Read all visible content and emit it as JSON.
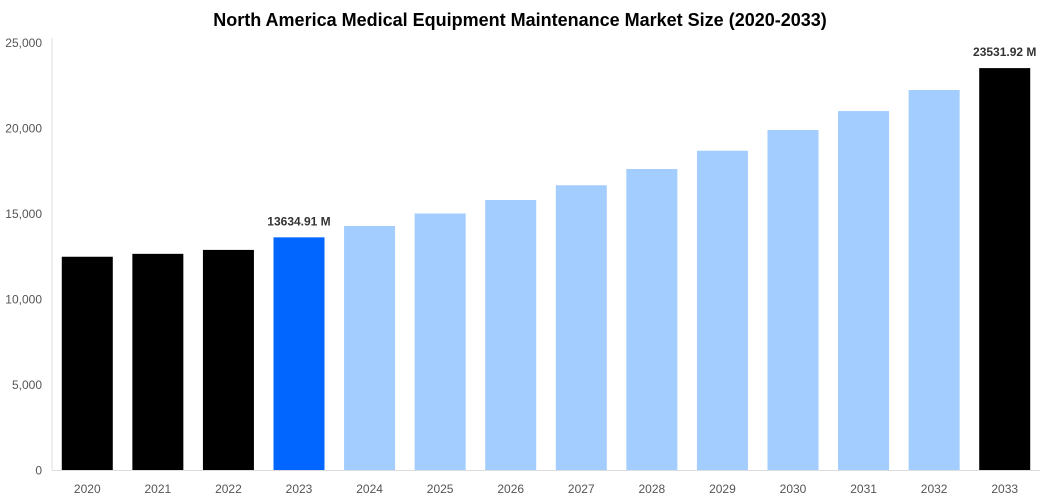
{
  "chart_data": {
    "type": "bar",
    "title": "North America Medical Equipment Maintenance Market Size (2020-2033)",
    "xlabel": "",
    "ylabel": "",
    "categories": [
      "2020",
      "2021",
      "2022",
      "2023",
      "2024",
      "2025",
      "2026",
      "2027",
      "2028",
      "2029",
      "2030",
      "2031",
      "2032",
      "2033"
    ],
    "values": [
      12500,
      12670,
      12900,
      13634.91,
      14300,
      15030,
      15820,
      16680,
      17630,
      18700,
      19910,
      21020,
      22250,
      23531.92
    ],
    "bar_colors": [
      "#000000",
      "#000000",
      "#000000",
      "#0066ff",
      "#a2cdfe",
      "#a2cdfe",
      "#a2cdfe",
      "#a2cdfe",
      "#a2cdfe",
      "#a2cdfe",
      "#a2cdfe",
      "#a2cdfe",
      "#a2cdfe",
      "#000000"
    ],
    "data_labels": [
      {
        "category": "2023",
        "text": "13634.91 M"
      },
      {
        "category": "2033",
        "text": "23531.92 M"
      }
    ],
    "ylim": [
      0,
      25000
    ],
    "yticks": [
      0,
      5000,
      10000,
      15000,
      20000,
      25000
    ],
    "ytick_labels": [
      "0",
      "5,000",
      "10,000",
      "15,000",
      "20,000",
      "25,000"
    ],
    "grid": false,
    "legend": "none"
  }
}
